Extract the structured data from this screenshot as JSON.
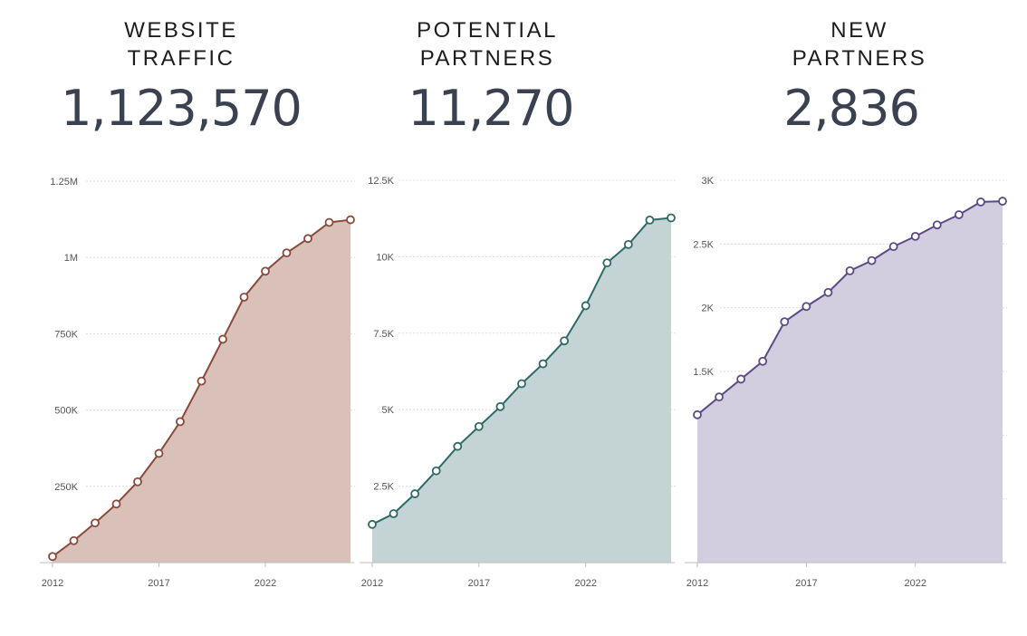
{
  "chart_data": [
    {
      "type": "area",
      "title_lines": [
        "WEBSITE",
        "TRAFFIC"
      ],
      "metric": "1,123,570",
      "x": [
        2012,
        2013,
        2014,
        2015,
        2016,
        2017,
        2018,
        2019,
        2020,
        2021,
        2022,
        2023,
        2024,
        2025,
        2026
      ],
      "values": [
        20000,
        72000,
        130000,
        192000,
        265000,
        358000,
        462000,
        595000,
        732000,
        870000,
        955000,
        1015000,
        1062000,
        1115000,
        1123570
      ],
      "ylim": [
        0,
        1250000
      ],
      "y_ticks": [
        250000,
        500000,
        750000,
        1000000,
        1250000
      ],
      "y_tick_labels": [
        "250K",
        "500K",
        "750K",
        "1M",
        "1.25M"
      ],
      "x_ticks": [
        2012,
        2017,
        2022
      ],
      "x_tick_labels": [
        "2012",
        "2017",
        "2022"
      ],
      "colors": {
        "line": "#8a4a3a",
        "fill": "#d9c1b9"
      }
    },
    {
      "type": "area",
      "title_lines": [
        "POTENTIAL",
        "PARTNERS"
      ],
      "metric": "11,270",
      "x": [
        2012,
        2013,
        2014,
        2015,
        2016,
        2017,
        2018,
        2019,
        2020,
        2021,
        2022,
        2023,
        2024,
        2025,
        2026
      ],
      "values": [
        1250,
        1600,
        2250,
        3000,
        3800,
        4450,
        5100,
        5850,
        6500,
        7250,
        8400,
        9800,
        10400,
        11200,
        11270
      ],
      "ylim": [
        0,
        12500
      ],
      "y_ticks": [
        2500,
        5000,
        7500,
        10000,
        12500
      ],
      "y_tick_labels": [
        "2.5K",
        "5K",
        "7.5K",
        "10K",
        "12.5K"
      ],
      "x_ticks": [
        2012,
        2017,
        2022
      ],
      "x_tick_labels": [
        "2012",
        "2017",
        "2022"
      ],
      "colors": {
        "line": "#2e6a66",
        "fill": "#c4d4d4"
      }
    },
    {
      "type": "area",
      "title_lines": [
        "NEW",
        "PARTNERS"
      ],
      "metric": "2,836",
      "x": [
        2012,
        2013,
        2014,
        2015,
        2016,
        2017,
        2018,
        2019,
        2020,
        2021,
        2022,
        2023,
        2024,
        2025,
        2026
      ],
      "values": [
        1160,
        1300,
        1440,
        1580,
        1890,
        2010,
        2120,
        2290,
        2370,
        2480,
        2560,
        2650,
        2730,
        2830,
        2836
      ],
      "ylim": [
        0,
        3000
      ],
      "y_ticks": [
        1500,
        2000,
        2500,
        3000
      ],
      "y_tick_labels": [
        "1.5K",
        "2K",
        "2.5K",
        "3K"
      ],
      "x_ticks": [
        2012,
        2017,
        2022
      ],
      "x_tick_labels": [
        "2012",
        "2017",
        "2022"
      ],
      "colors": {
        "line": "#5c4a87",
        "fill": "#d3cde0"
      }
    }
  ]
}
